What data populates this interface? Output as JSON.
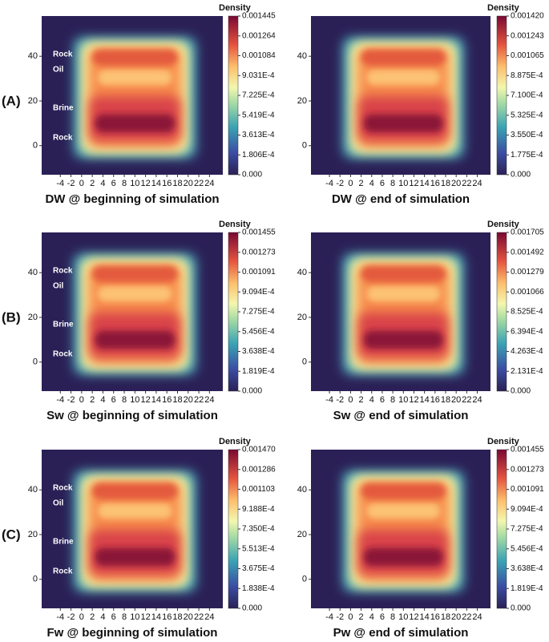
{
  "row_labels": [
    "(A)",
    "(B)",
    "(C)"
  ],
  "chart_data": [
    {
      "type": "heatmap",
      "title": "DW @ beginning of simulation",
      "annotations": [
        "Rock",
        "Oil",
        "Brine",
        "Rock"
      ],
      "xlim": [
        -7.5,
        26.5
      ],
      "xticks": [
        -4,
        -2,
        0,
        2,
        4,
        6,
        8,
        10,
        12,
        14,
        16,
        18,
        20,
        22,
        24
      ],
      "ylim": [
        -13,
        58
      ],
      "yticks": [
        0,
        20,
        40
      ],
      "colorbar_label": "Density",
      "clim": [
        0,
        0.001445
      ],
      "cticks": [
        {
          "value": 0,
          "label": "0.000"
        },
        {
          "value": 0.0001806,
          "label": "1.806E-4"
        },
        {
          "value": 0.0003613,
          "label": "3.613E-4"
        },
        {
          "value": 0.0005419,
          "label": "5.419E-4"
        },
        {
          "value": 0.0007225,
          "label": "7.225E-4"
        },
        {
          "value": 0.0009031,
          "label": "9.031E-4"
        },
        0.001084,
        0.001264,
        0.001445
      ]
    },
    {
      "type": "heatmap",
      "title": "DW @ end of simulation",
      "xlim": [
        -7.5,
        26.5
      ],
      "xticks": [
        -4,
        -2,
        0,
        2,
        4,
        6,
        8,
        10,
        12,
        14,
        16,
        18,
        20,
        22,
        24
      ],
      "ylim": [
        -13,
        58
      ],
      "yticks": [
        0,
        20,
        40
      ],
      "colorbar_label": "Density",
      "clim": [
        0,
        0.00142
      ],
      "cticks": [
        {
          "value": 0,
          "label": "0.000"
        },
        {
          "value": 0.0001775,
          "label": "1.775E-4"
        },
        {
          "value": 0.000355,
          "label": "3.550E-4"
        },
        {
          "value": 0.0005325,
          "label": "5.325E-4"
        },
        {
          "value": 0.00071,
          "label": "7.100E-4"
        },
        {
          "value": 0.0008875,
          "label": "8.875E-4"
        },
        0.001065,
        0.001243,
        {
          "value": 0.00142,
          "label": "0.001420"
        }
      ]
    },
    {
      "type": "heatmap",
      "title": "Sw @ beginning of simulation",
      "annotations": [
        "Rock",
        "Oil",
        "Brine",
        "Rock"
      ],
      "xlim": [
        -7.5,
        26.5
      ],
      "xticks": [
        -4,
        -2,
        0,
        2,
        4,
        6,
        8,
        10,
        12,
        14,
        16,
        18,
        20,
        22,
        24
      ],
      "ylim": [
        -13,
        58
      ],
      "yticks": [
        0,
        20,
        40
      ],
      "colorbar_label": "Density",
      "clim": [
        0,
        0.001455
      ],
      "cticks": [
        {
          "value": 0,
          "label": "0.000"
        },
        {
          "value": 0.0001819,
          "label": "1.819E-4"
        },
        {
          "value": 0.0003638,
          "label": "3.638E-4"
        },
        {
          "value": 0.0005456,
          "label": "5.456E-4"
        },
        {
          "value": 0.0007275,
          "label": "7.275E-4"
        },
        {
          "value": 0.0009094,
          "label": "9.094E-4"
        },
        0.001091,
        0.001273,
        0.001455
      ]
    },
    {
      "type": "heatmap",
      "title": "Sw @ end of simulation",
      "xlim": [
        -7.5,
        26.5
      ],
      "xticks": [
        -4,
        -2,
        0,
        2,
        4,
        6,
        8,
        10,
        12,
        14,
        16,
        18,
        20,
        22,
        24
      ],
      "ylim": [
        -13,
        58
      ],
      "yticks": [
        0,
        20,
        40
      ],
      "colorbar_label": "Density",
      "clim": [
        0,
        0.001705
      ],
      "cticks": [
        {
          "value": 0,
          "label": "0.000"
        },
        {
          "value": 0.0002131,
          "label": "2.131E-4"
        },
        {
          "value": 0.0004263,
          "label": "4.263E-4"
        },
        {
          "value": 0.0006394,
          "label": "6.394E-4"
        },
        {
          "value": 0.0008525,
          "label": "8.525E-4"
        },
        0.001066,
        0.001279,
        0.001492,
        0.001705
      ]
    },
    {
      "type": "heatmap",
      "title": "Fw @ beginning of simulation",
      "annotations": [
        "Rock",
        "Oil",
        "Brine",
        "Rock"
      ],
      "xlim": [
        -7.5,
        26.5
      ],
      "xticks": [
        -4,
        -2,
        0,
        2,
        4,
        6,
        8,
        10,
        12,
        14,
        16,
        18,
        20,
        22,
        24
      ],
      "ylim": [
        -13,
        58
      ],
      "yticks": [
        0,
        20,
        40
      ],
      "colorbar_label": "Density",
      "clim": [
        0,
        0.00147
      ],
      "cticks": [
        {
          "value": 0,
          "label": "0.000"
        },
        {
          "value": 0.0001838,
          "label": "1.838E-4"
        },
        {
          "value": 0.0003675,
          "label": "3.675E-4"
        },
        {
          "value": 0.0005513,
          "label": "5.513E-4"
        },
        {
          "value": 0.000735,
          "label": "7.350E-4"
        },
        {
          "value": 0.0009188,
          "label": "9.188E-4"
        },
        0.001103,
        0.001286,
        {
          "value": 0.00147,
          "label": "0.001470"
        }
      ]
    },
    {
      "type": "heatmap",
      "title": "Pw @ end of simulation",
      "xlim": [
        -7.5,
        26.5
      ],
      "xticks": [
        -4,
        -2,
        0,
        2,
        4,
        6,
        8,
        10,
        12,
        14,
        16,
        18,
        20,
        22,
        24
      ],
      "ylim": [
        -13,
        58
      ],
      "yticks": [
        0,
        20,
        40
      ],
      "colorbar_label": "Density",
      "clim": [
        0,
        0.001455
      ],
      "cticks": [
        {
          "value": 0,
          "label": "0.000"
        },
        {
          "value": 0.0001819,
          "label": "1.819E-4"
        },
        {
          "value": 0.0003638,
          "label": "3.638E-4"
        },
        {
          "value": 0.0005456,
          "label": "5.456E-4"
        },
        {
          "value": 0.0007275,
          "label": "7.275E-4"
        },
        {
          "value": 0.0009094,
          "label": "9.094E-4"
        },
        0.001091,
        0.001273,
        0.001455
      ]
    }
  ]
}
